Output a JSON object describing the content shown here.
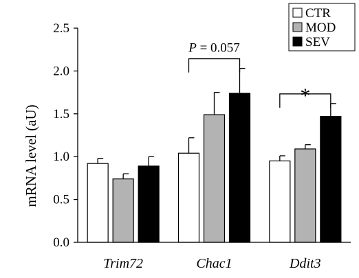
{
  "chart_data": {
    "type": "bar",
    "ylabel": "mRNA level (aU)",
    "ylim": [
      0,
      2.5
    ],
    "yticks": [
      "0.0",
      "0.5",
      "1.0",
      "1.5",
      "2.0",
      "2.5"
    ],
    "categories": [
      "Trim72",
      "Chac1",
      "Ddit3"
    ],
    "series": [
      {
        "name": "CTR",
        "color": "#ffffff",
        "values": [
          0.92,
          1.04,
          0.95
        ],
        "errors": [
          0.06,
          0.18,
          0.06
        ]
      },
      {
        "name": "MOD",
        "color": "#b3b3b3",
        "values": [
          0.74,
          1.49,
          1.09
        ],
        "errors": [
          0.06,
          0.26,
          0.05
        ]
      },
      {
        "name": "SEV",
        "color": "#000000",
        "values": [
          0.89,
          1.74,
          1.47
        ],
        "errors": [
          0.11,
          0.29,
          0.15
        ]
      }
    ],
    "legend_position": "top-right",
    "grid": false,
    "annotations": [
      {
        "text": "P = 0.057",
        "category": "Chac1",
        "from_series": "CTR",
        "to_series": "SEV"
      },
      {
        "text": "*",
        "category": "Ddit3",
        "from_series": "CTR",
        "to_series": "SEV"
      }
    ]
  }
}
